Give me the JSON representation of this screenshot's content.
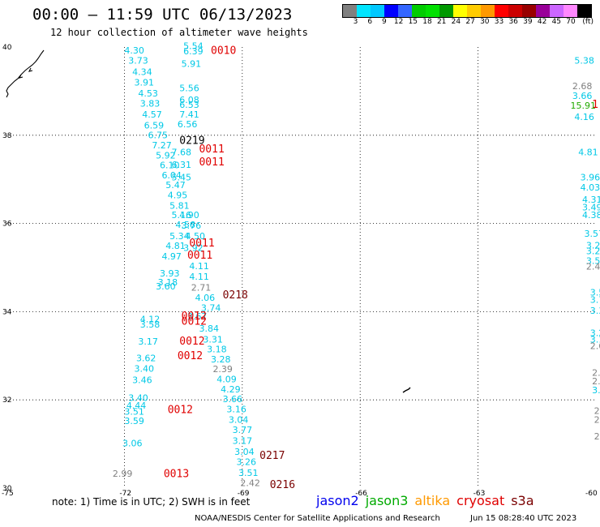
{
  "header": {
    "title": "00:00 – 11:59 UTC 06/13/2023",
    "subtitle": "12 hour collection of altimeter wave heights"
  },
  "colorbar": {
    "colors": [
      "#808080",
      "#00e5ff",
      "#00c8ff",
      "#0000ff",
      "#3366ff",
      "#00cc00",
      "#00e000",
      "#009900",
      "#ffff00",
      "#ffcc00",
      "#ff9900",
      "#ff0000",
      "#cc0000",
      "#990000",
      "#990099",
      "#cc66ff",
      "#ff88ff",
      "#000000"
    ],
    "labels": [
      "3",
      "6",
      "9",
      "12",
      "15",
      "18",
      "21",
      "24",
      "27",
      "30",
      "33",
      "36",
      "39",
      "42",
      "45",
      "70",
      "(ft)"
    ]
  },
  "axes": {
    "y_ticks": [
      "40",
      "38",
      "36",
      "34",
      "32",
      "30"
    ],
    "x_ticks": [
      "-75",
      "-72",
      "-69",
      "-66",
      "-63",
      "-60"
    ]
  },
  "wave_labels": [
    {
      "t": "4.30",
      "c": "#00c8e6",
      "lon": -72.0,
      "lat": 39.85
    },
    {
      "t": "3.73",
      "c": "#00c8e6",
      "lon": -71.9,
      "lat": 39.62
    },
    {
      "t": "4.34",
      "c": "#00c8e6",
      "lon": -71.8,
      "lat": 39.37
    },
    {
      "t": "3.91",
      "c": "#00c8e6",
      "lon": -71.75,
      "lat": 39.13
    },
    {
      "t": "4.53",
      "c": "#00c8e6",
      "lon": -71.65,
      "lat": 38.88
    },
    {
      "t": "3.83",
      "c": "#00c8e6",
      "lon": -71.6,
      "lat": 38.65
    },
    {
      "t": "4.57",
      "c": "#00c8e6",
      "lon": -71.55,
      "lat": 38.4
    },
    {
      "t": "6.59",
      "c": "#00c8e6",
      "lon": -71.5,
      "lat": 38.15
    },
    {
      "t": "6.75",
      "c": "#00c8e6",
      "lon": -71.4,
      "lat": 37.93
    },
    {
      "t": "7.27",
      "c": "#00c8e6",
      "lon": -71.3,
      "lat": 37.7
    },
    {
      "t": "5.92",
      "c": "#00c8e6",
      "lon": -71.2,
      "lat": 37.47
    },
    {
      "t": "6.10",
      "c": "#00c8e6",
      "lon": -71.1,
      "lat": 37.25
    },
    {
      "t": "6.04",
      "c": "#00c8e6",
      "lon": -71.05,
      "lat": 37.02
    },
    {
      "t": "5.47",
      "c": "#00c8e6",
      "lon": -70.95,
      "lat": 36.8
    },
    {
      "t": "4.95",
      "c": "#00c8e6",
      "lon": -70.9,
      "lat": 36.57
    },
    {
      "t": "5.81",
      "c": "#00c8e6",
      "lon": -70.85,
      "lat": 36.33
    },
    {
      "t": "5.16",
      "c": "#00c8e6",
      "lon": -70.8,
      "lat": 36.12
    },
    {
      "t": "4.56",
      "c": "#00c8e6",
      "lon": -70.7,
      "lat": 35.9
    },
    {
      "t": "5.34",
      "c": "#00c8e6",
      "lon": -70.85,
      "lat": 35.64
    },
    {
      "t": "4.81",
      "c": "#00c8e6",
      "lon": -70.95,
      "lat": 35.42
    },
    {
      "t": "4.97",
      "c": "#00c8e6",
      "lon": -71.05,
      "lat": 35.18
    },
    {
      "t": "3.93",
      "c": "#00c8e6",
      "lon": -71.1,
      "lat": 34.8
    },
    {
      "t": "3.18",
      "c": "#00c8e6",
      "lon": -71.15,
      "lat": 34.6
    },
    {
      "t": "3.60",
      "c": "#00c8e6",
      "lon": -71.2,
      "lat": 34.5
    },
    {
      "t": "4.12",
      "c": "#00c8e6",
      "lon": -71.6,
      "lat": 33.76
    },
    {
      "t": "3.58",
      "c": "#00c8e6",
      "lon": -71.6,
      "lat": 33.64
    },
    {
      "t": "3.17",
      "c": "#00c8e6",
      "lon": -71.65,
      "lat": 33.25
    },
    {
      "t": "3.62",
      "c": "#00c8e6",
      "lon": -71.7,
      "lat": 32.88
    },
    {
      "t": "3.40",
      "c": "#00c8e6",
      "lon": -71.75,
      "lat": 32.64
    },
    {
      "t": "3.46",
      "c": "#00c8e6",
      "lon": -71.8,
      "lat": 32.38
    },
    {
      "t": "3.40",
      "c": "#00c8e6",
      "lon": -71.9,
      "lat": 31.98
    },
    {
      "t": "4.44",
      "c": "#00c8e6",
      "lon": -71.95,
      "lat": 31.8
    },
    {
      "t": "3.51",
      "c": "#00c8e6",
      "lon": -72.0,
      "lat": 31.66
    },
    {
      "t": "3.59",
      "c": "#00c8e6",
      "lon": -72.0,
      "lat": 31.45
    },
    {
      "t": "3.06",
      "c": "#00c8e6",
      "lon": -72.05,
      "lat": 30.95
    },
    {
      "t": "5.54",
      "c": "#00c8e6",
      "lon": -70.5,
      "lat": 39.95
    },
    {
      "t": "6.39",
      "c": "#00c8e6",
      "lon": -70.5,
      "lat": 39.83
    },
    {
      "t": "5.91",
      "c": "#00c8e6",
      "lon": -70.55,
      "lat": 39.55
    },
    {
      "t": "5.56",
      "c": "#00c8e6",
      "lon": -70.6,
      "lat": 39.0
    },
    {
      "t": "6.08",
      "c": "#00c8e6",
      "lon": -70.6,
      "lat": 38.73
    },
    {
      "t": "6.53",
      "c": "#00c8e6",
      "lon": -70.6,
      "lat": 38.62
    },
    {
      "t": "7.41",
      "c": "#00c8e6",
      "lon": -70.6,
      "lat": 38.4
    },
    {
      "t": "6.56",
      "c": "#00c8e6",
      "lon": -70.65,
      "lat": 38.18
    },
    {
      "t": "7.68",
      "c": "#00c8e6",
      "lon": -70.8,
      "lat": 37.55
    },
    {
      "t": "6.31",
      "c": "#00c8e6",
      "lon": -70.8,
      "lat": 37.26
    },
    {
      "t": "5.45",
      "c": "#00c8e6",
      "lon": -70.8,
      "lat": 36.98
    },
    {
      "t": "4.90",
      "c": "#00c8e6",
      "lon": -70.6,
      "lat": 36.12
    },
    {
      "t": "3.76",
      "c": "#00c8e6",
      "lon": -70.55,
      "lat": 35.88
    },
    {
      "t": "4.50",
      "c": "#00c8e6",
      "lon": -70.45,
      "lat": 35.64
    },
    {
      "t": "3.92",
      "c": "#00c8e6",
      "lon": -70.5,
      "lat": 35.38
    },
    {
      "t": "4.11",
      "c": "#00c8e6",
      "lon": -70.35,
      "lat": 34.96
    },
    {
      "t": "4.11",
      "c": "#00c8e6",
      "lon": -70.35,
      "lat": 34.72
    },
    {
      "t": "2.71",
      "c": "#808080",
      "lon": -70.3,
      "lat": 34.48
    },
    {
      "t": "4.06",
      "c": "#00c8e6",
      "lon": -70.2,
      "lat": 34.25
    },
    {
      "t": "3.74",
      "c": "#00c8e6",
      "lon": -70.05,
      "lat": 34.02
    },
    {
      "t": "3.67",
      "c": "#00c8e6",
      "lon": -70.4,
      "lat": 33.82
    },
    {
      "t": "3.84",
      "c": "#00c8e6",
      "lon": -70.1,
      "lat": 33.55
    },
    {
      "t": "3.31",
      "c": "#00c8e6",
      "lon": -70.0,
      "lat": 33.3
    },
    {
      "t": "3.18",
      "c": "#00c8e6",
      "lon": -69.9,
      "lat": 33.08
    },
    {
      "t": "3.28",
      "c": "#00c8e6",
      "lon": -69.8,
      "lat": 32.85
    },
    {
      "t": "2.39",
      "c": "#808080",
      "lon": -69.75,
      "lat": 32.63
    },
    {
      "t": "4.09",
      "c": "#00c8e6",
      "lon": -69.65,
      "lat": 32.4
    },
    {
      "t": "4.29",
      "c": "#00c8e6",
      "lon": -69.55,
      "lat": 32.17
    },
    {
      "t": "3.66",
      "c": "#00c8e6",
      "lon": -69.5,
      "lat": 31.95
    },
    {
      "t": "3.16",
      "c": "#00c8e6",
      "lon": -69.4,
      "lat": 31.72
    },
    {
      "t": "3.04",
      "c": "#00c8e6",
      "lon": -69.35,
      "lat": 31.48
    },
    {
      "t": "3.77",
      "c": "#00c8e6",
      "lon": -69.25,
      "lat": 31.25
    },
    {
      "t": "3.17",
      "c": "#00c8e6",
      "lon": -69.25,
      "lat": 31.0
    },
    {
      "t": "3.04",
      "c": "#00c8e6",
      "lon": -69.2,
      "lat": 30.75
    },
    {
      "t": "3.26",
      "c": "#00c8e6",
      "lon": -69.15,
      "lat": 30.52
    },
    {
      "t": "3.51",
      "c": "#00c8e6",
      "lon": -69.1,
      "lat": 30.28
    },
    {
      "t": "2.42",
      "c": "#808080",
      "lon": -69.05,
      "lat": 30.05
    },
    {
      "t": "2.99",
      "c": "#808080",
      "lon": -72.3,
      "lat": 30.26
    },
    {
      "t": "5.38",
      "c": "#00c8e6",
      "lon": -60.55,
      "lat": 39.62
    },
    {
      "t": "2.68",
      "c": "#808080",
      "lon": -60.6,
      "lat": 39.04
    },
    {
      "t": "3.66",
      "c": "#00c8e6",
      "lon": -60.6,
      "lat": 38.82
    },
    {
      "t": "15.91",
      "c": "#22aa00",
      "lon": -60.65,
      "lat": 38.6
    },
    {
      "t": "4.16",
      "c": "#00c8e6",
      "lon": -60.55,
      "lat": 38.35
    },
    {
      "t": "4.81",
      "c": "#00c8e6",
      "lon": -60.45,
      "lat": 37.55
    },
    {
      "t": "3.96",
      "c": "#00c8e6",
      "lon": -60.4,
      "lat": 36.98
    },
    {
      "t": "4.03",
      "c": "#00c8e6",
      "lon": -60.4,
      "lat": 36.75
    },
    {
      "t": "4.31",
      "c": "#00c8e6",
      "lon": -60.35,
      "lat": 36.47
    },
    {
      "t": "3.49",
      "c": "#00c8e6",
      "lon": -60.35,
      "lat": 36.3
    },
    {
      "t": "4.38",
      "c": "#00c8e6",
      "lon": -60.35,
      "lat": 36.12
    },
    {
      "t": "3.57",
      "c": "#00c8e6",
      "lon": -60.3,
      "lat": 35.7
    },
    {
      "t": "3.22",
      "c": "#00c8e6",
      "lon": -60.25,
      "lat": 35.43
    },
    {
      "t": "3.24",
      "c": "#00c8e6",
      "lon": -60.25,
      "lat": 35.3
    },
    {
      "t": "3.51",
      "c": "#00c8e6",
      "lon": -60.25,
      "lat": 35.08
    },
    {
      "t": "2.46",
      "c": "#808080",
      "lon": -60.25,
      "lat": 34.95
    },
    {
      "t": "3.5",
      "c": "#00c8e6",
      "lon": -60.15,
      "lat": 34.37
    },
    {
      "t": "3.7",
      "c": "#00c8e6",
      "lon": -60.15,
      "lat": 34.2
    },
    {
      "t": "3.3",
      "c": "#00c8e6",
      "lon": -60.15,
      "lat": 33.95
    },
    {
      "t": "3.2",
      "c": "#00c8e6",
      "lon": -60.15,
      "lat": 33.45
    },
    {
      "t": "3.1",
      "c": "#00c8e6",
      "lon": -60.15,
      "lat": 33.3
    },
    {
      "t": "2.6",
      "c": "#808080",
      "lon": -60.15,
      "lat": 33.15
    },
    {
      "t": "2.",
      "c": "#808080",
      "lon": -60.1,
      "lat": 32.55
    },
    {
      "t": "2.",
      "c": "#808080",
      "lon": -60.1,
      "lat": 32.35
    },
    {
      "t": "3.",
      "c": "#00c8e6",
      "lon": -60.1,
      "lat": 32.15
    },
    {
      "t": "2.",
      "c": "#808080",
      "lon": -60.05,
      "lat": 31.68
    },
    {
      "t": "2.",
      "c": "#808080",
      "lon": -60.05,
      "lat": 31.48
    },
    {
      "t": "2.",
      "c": "#808080",
      "lon": -60.05,
      "lat": 31.1
    }
  ],
  "time_labels": [
    {
      "t": "0010",
      "c": "#e00000",
      "lon": -69.8,
      "lat": 39.84
    },
    {
      "t": "0219",
      "c": "#000000",
      "lon": -70.6,
      "lat": 37.8
    },
    {
      "t": "0011",
      "c": "#e00000",
      "lon": -70.1,
      "lat": 37.61
    },
    {
      "t": "0011",
      "c": "#e00000",
      "lon": -70.1,
      "lat": 37.32
    },
    {
      "t": "0011",
      "c": "#e00000",
      "lon": -70.35,
      "lat": 35.48
    },
    {
      "t": "0011",
      "c": "#e00000",
      "lon": -70.4,
      "lat": 35.2
    },
    {
      "t": "0218",
      "c": "#7a0000",
      "lon": -69.5,
      "lat": 34.3
    },
    {
      "t": "0012",
      "c": "#e00000",
      "lon": -70.55,
      "lat": 33.82
    },
    {
      "t": "0012",
      "c": "#e00000",
      "lon": -70.55,
      "lat": 33.7
    },
    {
      "t": "0012",
      "c": "#e00000",
      "lon": -70.6,
      "lat": 33.25
    },
    {
      "t": "0012",
      "c": "#e00000",
      "lon": -70.65,
      "lat": 32.92
    },
    {
      "t": "0012",
      "c": "#e00000",
      "lon": -70.9,
      "lat": 31.7
    },
    {
      "t": "0217",
      "c": "#7a0000",
      "lon": -68.56,
      "lat": 30.66
    },
    {
      "t": "0013",
      "c": "#e00000",
      "lon": -71.0,
      "lat": 30.25
    },
    {
      "t": "0216",
      "c": "#7a0000",
      "lon": -68.3,
      "lat": 30.0
    },
    {
      "t": "1",
      "c": "#e00000",
      "lon": -60.1,
      "lat": 38.62
    }
  ],
  "note": "note: 1) Time is in UTC; 2) SWH is in feet",
  "satellites": [
    {
      "name": "jason2",
      "color": "#0000ee"
    },
    {
      "name": "jason3",
      "color": "#00aa00"
    },
    {
      "name": "altika",
      "color": "#ff9900"
    },
    {
      "name": "cryosat",
      "color": "#e00000"
    },
    {
      "name": "s3a",
      "color": "#7a0000"
    }
  ],
  "credit": "NOAA/NESDIS Center for Satellite Applications and Research",
  "credit_time": "Jun 15 08:28:40 UTC 2023"
}
